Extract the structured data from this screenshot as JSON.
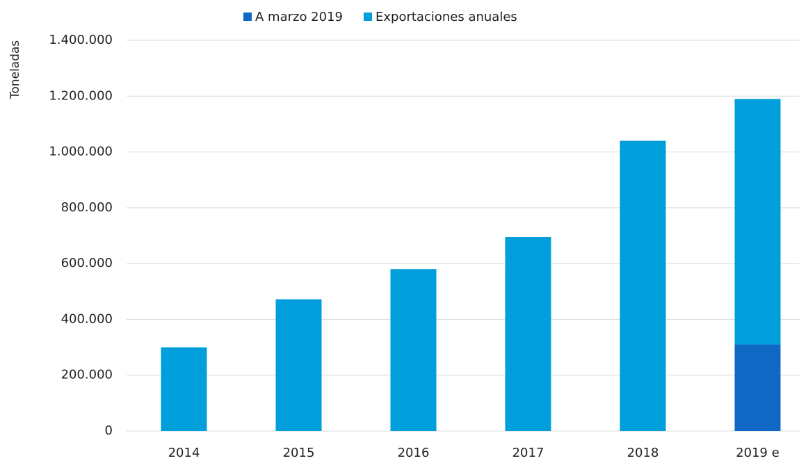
{
  "chart_data": {
    "type": "stacked_bar",
    "ylabel": "Toneladas",
    "categories": [
      "2014",
      "2015",
      "2016",
      "2017",
      "2018",
      "2019 e"
    ],
    "series": [
      {
        "name": "A marzo 2019",
        "color": "#1068c4",
        "values": [
          null,
          null,
          null,
          null,
          null,
          310000
        ]
      },
      {
        "name": "Exportaciones anuales",
        "color": "#009fdb",
        "values": [
          300000,
          472000,
          580000,
          695000,
          1040000,
          880000
        ]
      }
    ],
    "ylim": [
      0,
      1400000
    ],
    "yticks": [
      0,
      {
        "value": 200000,
        "label": "200.000"
      },
      {
        "value": 400000,
        "label": "400.000"
      },
      {
        "value": 600000,
        "label": "600.000"
      },
      {
        "value": 800000,
        "label": "800.000"
      },
      {
        "value": 1000000,
        "label": "1.000.000"
      },
      {
        "value": 1200000,
        "label": "1.200.000"
      },
      {
        "value": 1400000,
        "label": "1.400.000"
      }
    ],
    "grid": true,
    "legend": "top"
  }
}
